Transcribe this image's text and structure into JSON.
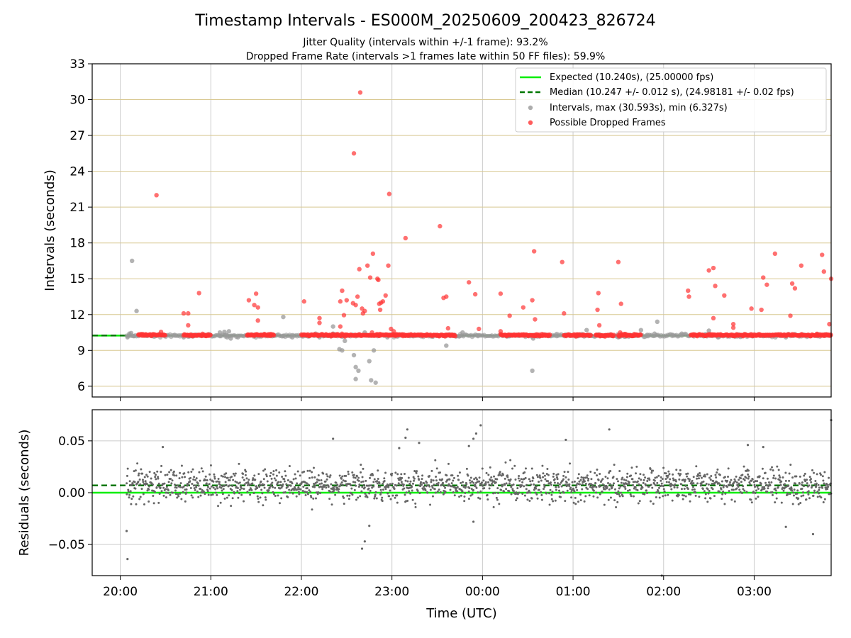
{
  "chart_data": {
    "type": "scatter",
    "title": "Timestamp Intervals - ES000M_20250609_200423_826724",
    "subtitle_lines": [
      "Jitter Quality (intervals within +/-1 frame): 93.2%",
      "Dropped Frame Rate (intervals >1 frames late within 50 FF files): 59.9%"
    ],
    "xlabel": "Time (UTC)",
    "x_tick_labels": [
      "20:00",
      "21:00",
      "22:00",
      "23:00",
      "00:00",
      "01:00",
      "02:00",
      "03:00"
    ],
    "x_range_hours": [
      19.69,
      27.85
    ],
    "panels": [
      {
        "name": "intervals",
        "ylabel": "Intervals (seconds)",
        "ylim": [
          5.1,
          33
        ],
        "yticks": [
          6,
          9,
          12,
          15,
          18,
          21,
          24,
          27,
          30,
          33
        ],
        "grid": true,
        "legend_position": "top-right",
        "legend": [
          "Expected (10.240s), (25.00000 fps)",
          "Median (10.247 +/- 0.012 s), (24.98181 +/- 0.02 fps)",
          "Intervals, max (30.593s), min (6.327s)",
          "Possible Dropped Frames"
        ],
        "expected_line": 10.24,
        "median_line": 10.247,
        "dropped_baseline": 10.28,
        "dropped_segments_hours": [
          [
            20.2,
            20.5
          ],
          [
            20.7,
            21.0
          ],
          [
            21.4,
            21.7
          ],
          [
            22.0,
            22.45
          ],
          [
            22.45,
            23.7
          ],
          [
            24.2,
            24.75
          ],
          [
            24.9,
            25.2
          ],
          [
            25.25,
            25.45
          ],
          [
            25.5,
            25.75
          ],
          [
            26.3,
            26.55
          ],
          [
            26.55,
            27.85
          ]
        ],
        "dropped_points": [
          [
            20.4,
            22.0
          ],
          [
            20.45,
            10.55
          ],
          [
            20.7,
            12.1
          ],
          [
            20.75,
            12.1
          ],
          [
            20.75,
            11.1
          ],
          [
            20.87,
            13.8
          ],
          [
            21.42,
            13.2
          ],
          [
            21.48,
            12.8
          ],
          [
            21.5,
            13.75
          ],
          [
            21.52,
            12.6
          ],
          [
            21.52,
            11.5
          ],
          [
            22.03,
            13.1
          ],
          [
            22.2,
            11.7
          ],
          [
            22.2,
            11.3
          ],
          [
            22.43,
            13.1
          ],
          [
            22.43,
            11.0
          ],
          [
            22.45,
            14.0
          ],
          [
            22.47,
            11.95
          ],
          [
            22.5,
            13.2
          ],
          [
            22.57,
            12.95
          ],
          [
            22.58,
            25.5
          ],
          [
            22.6,
            12.8
          ],
          [
            22.62,
            13.5
          ],
          [
            22.64,
            15.8
          ],
          [
            22.65,
            30.6
          ],
          [
            22.67,
            12.5
          ],
          [
            22.68,
            12.1
          ],
          [
            22.7,
            12.3
          ],
          [
            22.73,
            16.1
          ],
          [
            22.76,
            15.1
          ],
          [
            22.78,
            10.5
          ],
          [
            22.79,
            17.1
          ],
          [
            22.84,
            15.0
          ],
          [
            22.85,
            14.9
          ],
          [
            22.86,
            12.9
          ],
          [
            22.87,
            12.4
          ],
          [
            22.88,
            13.0
          ],
          [
            22.9,
            13.1
          ],
          [
            22.93,
            13.6
          ],
          [
            22.96,
            16.1
          ],
          [
            22.97,
            22.1
          ],
          [
            22.99,
            10.8
          ],
          [
            23.02,
            10.6
          ],
          [
            23.15,
            18.4
          ],
          [
            23.53,
            19.4
          ],
          [
            23.57,
            13.4
          ],
          [
            23.6,
            13.5
          ],
          [
            23.62,
            10.85
          ],
          [
            23.85,
            14.7
          ],
          [
            23.92,
            13.7
          ],
          [
            23.96,
            10.8
          ],
          [
            24.2,
            13.75
          ],
          [
            24.2,
            10.6
          ],
          [
            24.3,
            11.9
          ],
          [
            24.45,
            12.6
          ],
          [
            24.55,
            13.2
          ],
          [
            24.57,
            17.3
          ],
          [
            24.58,
            11.6
          ],
          [
            24.88,
            16.4
          ],
          [
            24.9,
            12.1
          ],
          [
            25.27,
            12.4
          ],
          [
            25.28,
            13.8
          ],
          [
            25.29,
            11.1
          ],
          [
            25.5,
            16.4
          ],
          [
            25.53,
            12.9
          ],
          [
            25.52,
            10.5
          ],
          [
            26.27,
            14.0
          ],
          [
            26.28,
            13.5
          ],
          [
            26.5,
            15.7
          ],
          [
            26.55,
            15.9
          ],
          [
            26.57,
            14.4
          ],
          [
            26.55,
            11.7
          ],
          [
            26.67,
            13.6
          ],
          [
            26.77,
            10.9
          ],
          [
            26.77,
            11.2
          ],
          [
            26.97,
            12.5
          ],
          [
            27.08,
            12.4
          ],
          [
            27.1,
            15.1
          ],
          [
            27.14,
            14.5
          ],
          [
            27.23,
            17.1
          ],
          [
            27.4,
            11.9
          ],
          [
            27.42,
            14.6
          ],
          [
            27.45,
            14.2
          ],
          [
            27.52,
            16.1
          ],
          [
            27.75,
            17.0
          ],
          [
            27.77,
            15.6
          ],
          [
            27.83,
            11.2
          ],
          [
            27.85,
            15.0
          ]
        ],
        "interval_points": [
          [
            20.13,
            16.5
          ],
          [
            20.18,
            12.3
          ],
          [
            20.08,
            10.1
          ],
          [
            20.1,
            10.4
          ],
          [
            20.12,
            10.45
          ],
          [
            20.15,
            10.2
          ],
          [
            20.6,
            10.3
          ],
          [
            20.7,
            10.1
          ],
          [
            21.1,
            10.2
          ],
          [
            21.1,
            10.5
          ],
          [
            21.15,
            10.55
          ],
          [
            21.17,
            10.3
          ],
          [
            21.18,
            10.1
          ],
          [
            21.2,
            10.6
          ],
          [
            21.22,
            10.0
          ],
          [
            21.3,
            10.1
          ],
          [
            21.8,
            11.8
          ],
          [
            21.8,
            10.2
          ],
          [
            21.9,
            10.1
          ],
          [
            22.2,
            10.1
          ],
          [
            22.35,
            10.4
          ],
          [
            22.35,
            11.0
          ],
          [
            22.42,
            9.1
          ],
          [
            22.45,
            9.0
          ],
          [
            22.47,
            10.2
          ],
          [
            22.48,
            9.8
          ],
          [
            22.58,
            8.6
          ],
          [
            22.6,
            6.6
          ],
          [
            22.6,
            7.6
          ],
          [
            22.63,
            7.3
          ],
          [
            22.75,
            8.1
          ],
          [
            22.77,
            6.5
          ],
          [
            22.8,
            9.0
          ],
          [
            22.82,
            6.3
          ],
          [
            22.7,
            10.5
          ],
          [
            22.95,
            10.1
          ],
          [
            23.2,
            10.2
          ],
          [
            23.45,
            10.15
          ],
          [
            23.6,
            9.4
          ],
          [
            23.75,
            10.2
          ],
          [
            23.78,
            10.5
          ],
          [
            23.95,
            10.2
          ],
          [
            24.3,
            10.2
          ],
          [
            24.55,
            7.3
          ],
          [
            24.56,
            10.0
          ],
          [
            24.82,
            10.2
          ],
          [
            25.05,
            10.2
          ],
          [
            25.15,
            10.7
          ],
          [
            25.3,
            10.3
          ],
          [
            25.5,
            10.1
          ],
          [
            25.75,
            10.7
          ],
          [
            25.82,
            10.3
          ],
          [
            25.9,
            10.4
          ],
          [
            25.93,
            11.4
          ],
          [
            26.1,
            10.3
          ],
          [
            26.2,
            10.4
          ],
          [
            26.5,
            10.65
          ],
          [
            26.6,
            10.1
          ],
          [
            26.85,
            10.2
          ],
          [
            27.1,
            10.2
          ],
          [
            27.35,
            10.1
          ],
          [
            27.7,
            10.2
          ]
        ]
      },
      {
        "name": "residuals",
        "ylabel": "Residuals (seconds)",
        "ylim": [
          -0.08,
          0.08
        ],
        "yticks": [
          -0.05,
          0.0,
          0.05
        ],
        "y_tick_labels": [
          "−0.05",
          "0.00",
          "0.05"
        ],
        "grid": true,
        "expected_line": 0.0,
        "median_line": 0.007,
        "scatter_start_hour": 20.07,
        "scatter_end_hour": 27.85,
        "scatter_count": 1700,
        "scatter_center": 0.008,
        "scatter_spread": 0.008,
        "outliers": [
          [
            20.07,
            -0.037
          ],
          [
            20.08,
            -0.064
          ],
          [
            20.47,
            0.044
          ],
          [
            22.35,
            0.052
          ],
          [
            22.67,
            -0.054
          ],
          [
            22.7,
            -0.047
          ],
          [
            22.75,
            -0.032
          ],
          [
            23.08,
            0.043
          ],
          [
            23.15,
            0.053
          ],
          [
            23.17,
            0.061
          ],
          [
            23.3,
            0.048
          ],
          [
            23.85,
            0.045
          ],
          [
            23.9,
            0.052
          ],
          [
            23.93,
            0.057
          ],
          [
            23.98,
            0.065
          ],
          [
            23.9,
            -0.028
          ],
          [
            24.92,
            0.051
          ],
          [
            25.4,
            0.061
          ],
          [
            25.98,
            -0.081
          ],
          [
            26.93,
            0.046
          ],
          [
            27.1,
            0.044
          ],
          [
            27.35,
            -0.033
          ],
          [
            27.65,
            -0.04
          ],
          [
            27.85,
            0.07
          ]
        ]
      }
    ],
    "colors": {
      "expected": "#00ee00",
      "median": "#007700",
      "intervals": "#999999",
      "dropped": "#ff3333",
      "residuals": "#666666",
      "grid_x": "#cccccc",
      "grid_y": "#d8c890"
    }
  }
}
